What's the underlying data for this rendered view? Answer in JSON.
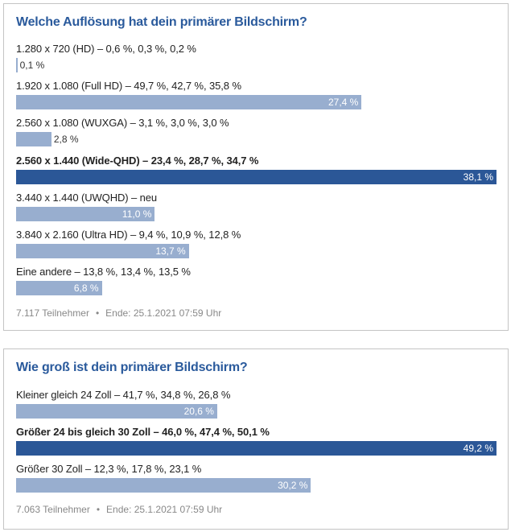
{
  "polls": [
    {
      "title": "Welche Auflösung hat dein primärer Bildschirm?",
      "options": [
        {
          "label": "1.280 x 720 (HD) – 0,6 %, 0,3 %, 0,2 %",
          "value": 0.1,
          "value_label": "0,1 %",
          "highlight": false
        },
        {
          "label": "1.920 x 1.080 (Full HD) – 49,7 %, 42,7 %, 35,8 %",
          "value": 27.4,
          "value_label": "27,4 %",
          "highlight": false
        },
        {
          "label": "2.560 x 1.080 (WUXGA) – 3,1 %, 3,0 %, 3,0 %",
          "value": 2.8,
          "value_label": "2,8 %",
          "highlight": false
        },
        {
          "label": "2.560 x 1.440 (Wide-QHD) – 23,4 %, 28,7 %, 34,7 %",
          "value": 38.1,
          "value_label": "38,1 %",
          "highlight": true
        },
        {
          "label": "3.440 x 1.440 (UWQHD) – neu",
          "value": 11.0,
          "value_label": "11,0 %",
          "highlight": false
        },
        {
          "label": "3.840 x 2.160 (Ultra HD) – 9,4 %, 10,9 %, 12,8 %",
          "value": 13.7,
          "value_label": "13,7 %",
          "highlight": false
        },
        {
          "label": "Eine andere – 13,8 %, 13,4 %, 13,5 %",
          "value": 6.8,
          "value_label": "6,8 %",
          "highlight": false
        }
      ],
      "participants": "7.117 Teilnehmer",
      "separator": "•",
      "end": "Ende: 25.1.2021 07:59 Uhr"
    },
    {
      "title": "Wie groß ist dein primärer Bildschirm?",
      "options": [
        {
          "label": "Kleiner gleich 24 Zoll – 41,7 %, 34,8 %, 26,8 %",
          "value": 20.6,
          "value_label": "20,6 %",
          "highlight": false
        },
        {
          "label": "Größer 24 bis gleich 30 Zoll – 46,0 %, 47,4 %, 50,1 %",
          "value": 49.2,
          "value_label": "49,2 %",
          "highlight": true
        },
        {
          "label": "Größer 30 Zoll – 12,3 %, 17,8 %, 23,1 %",
          "value": 30.2,
          "value_label": "30,2 %",
          "highlight": false
        }
      ],
      "participants": "7.063 Teilnehmer",
      "separator": "•",
      "end": "Ende: 25.1.2021 07:59 Uhr"
    }
  ],
  "colors": {
    "title": "#2a5a9c",
    "bar": "#98aecf",
    "bar_highlight": "#2b5797"
  }
}
